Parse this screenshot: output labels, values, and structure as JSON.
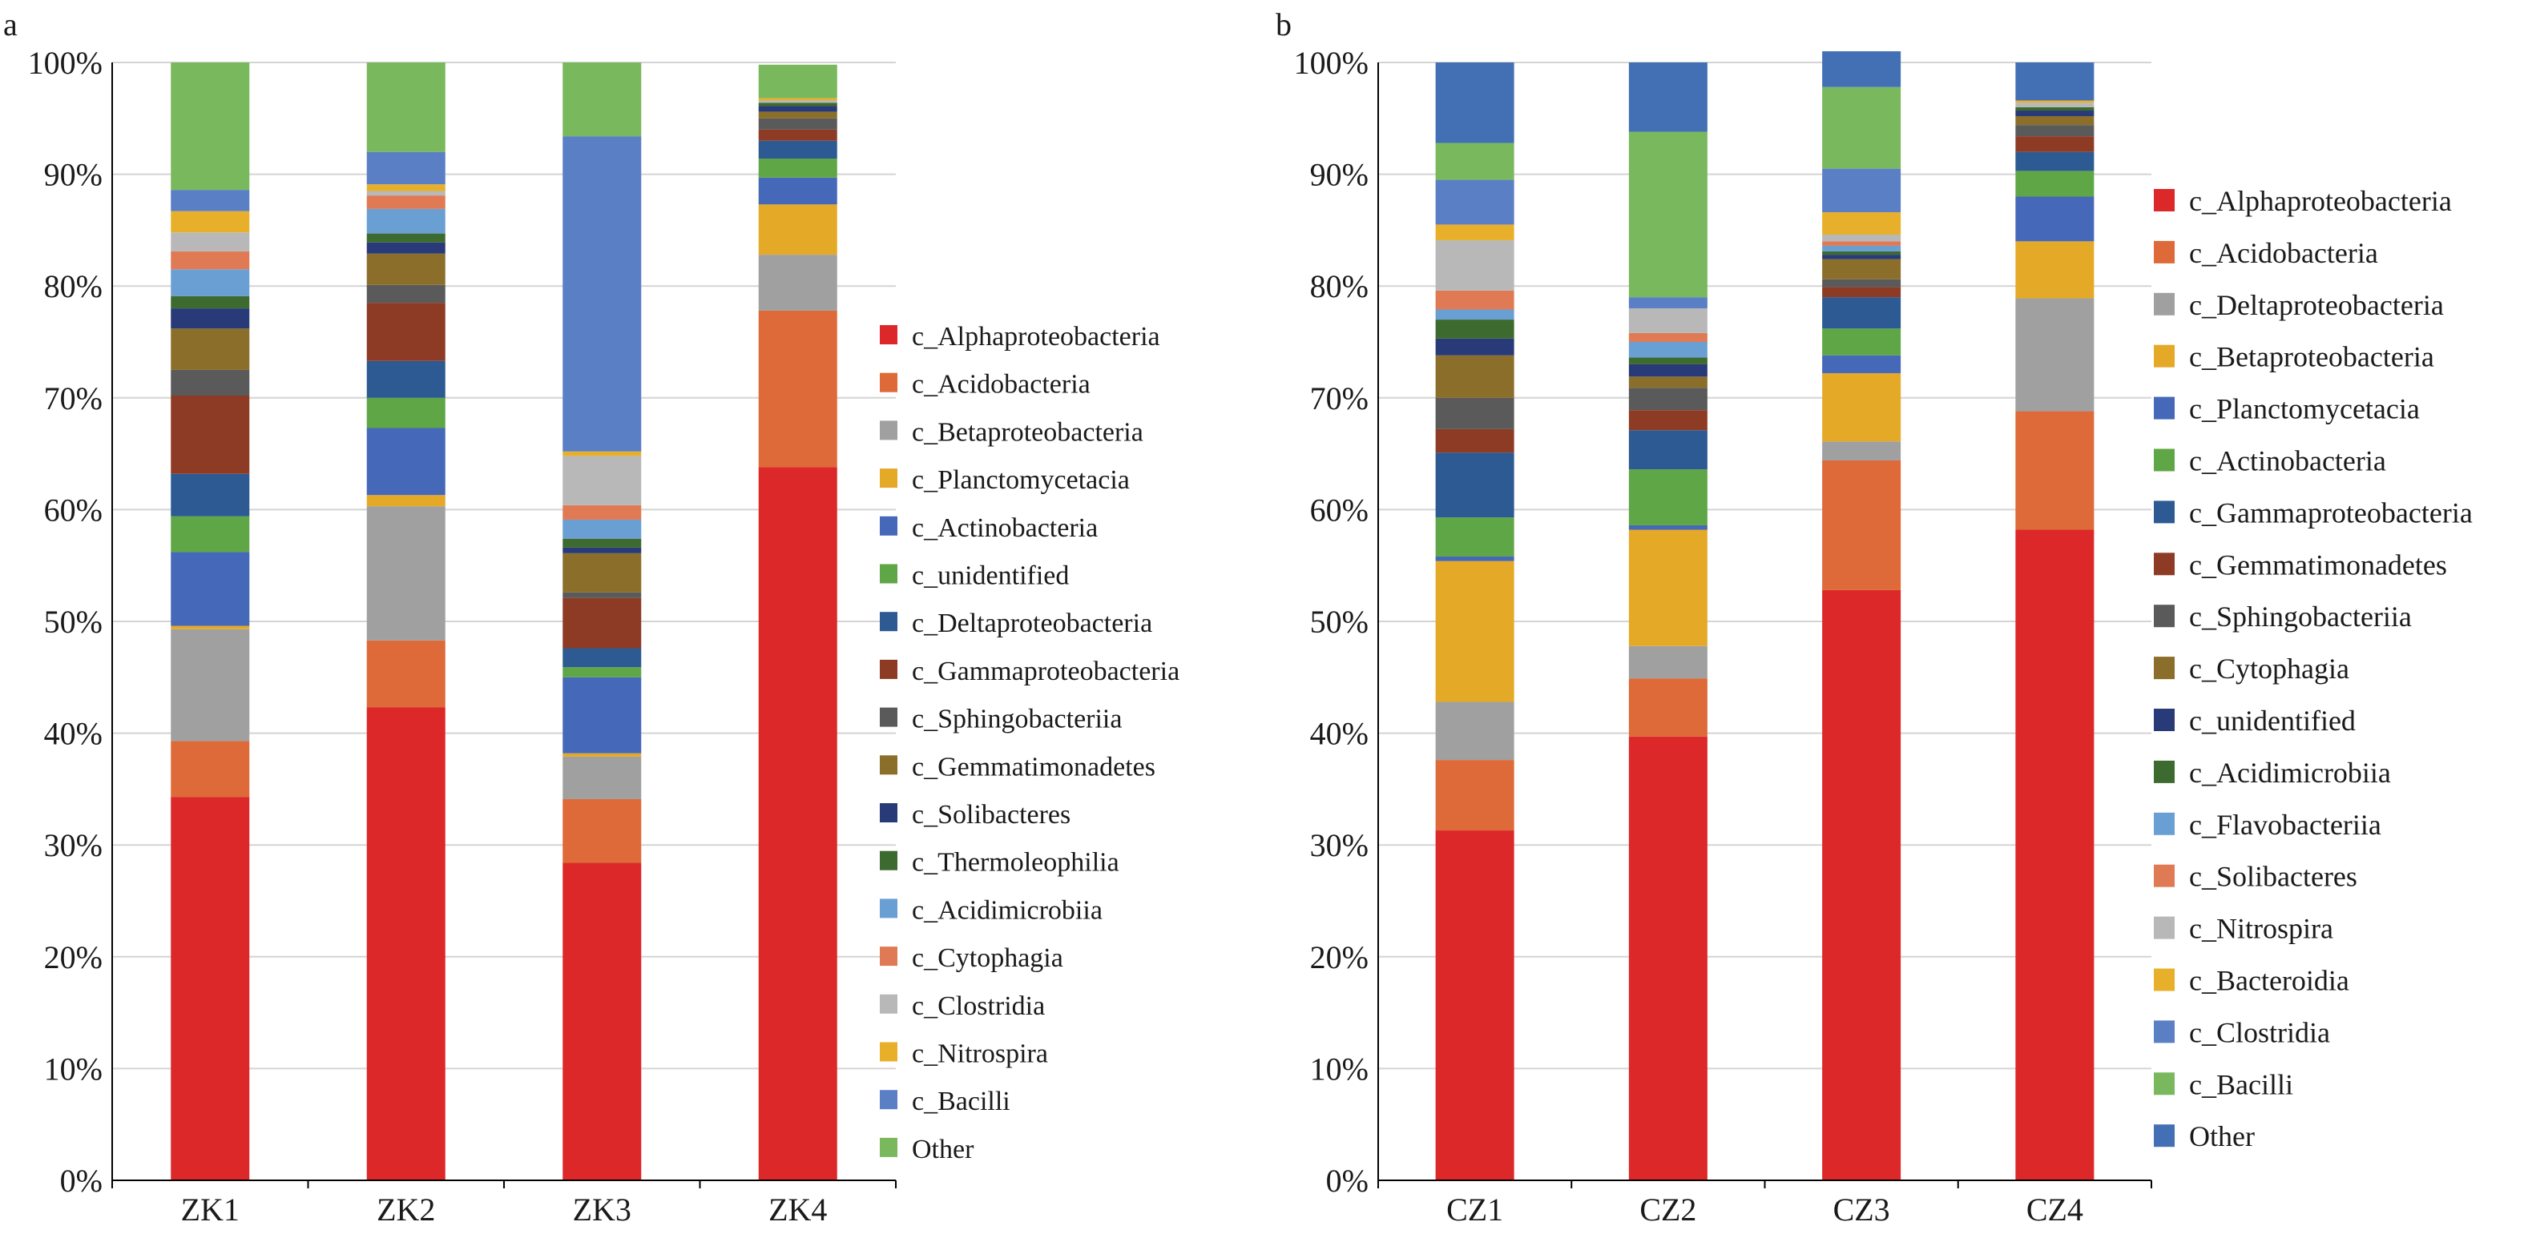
{
  "chart_data": [
    {
      "panel_label": "a",
      "type": "bar",
      "stacked": true,
      "categories": [
        "ZK1",
        "ZK2",
        "ZK3",
        "ZK4"
      ],
      "ylim": [
        0,
        100
      ],
      "yticks": [
        "0%",
        "10%",
        "20%",
        "30%",
        "40%",
        "50%",
        "60%",
        "70%",
        "80%",
        "90%",
        "100%"
      ],
      "grid": true,
      "legend_position": "right",
      "series": [
        {
          "name": "c_Alphaproteobacteria",
          "color": "#dc2828",
          "values": [
            34.3,
            42.3,
            28.4,
            63.8
          ]
        },
        {
          "name": "c_Acidobacteria",
          "color": "#dd6a38",
          "values": [
            5.0,
            6.0,
            5.7,
            14.0
          ]
        },
        {
          "name": "c_Betaproteobacteria",
          "color": "#a0a0a0",
          "values": [
            10.0,
            12.0,
            3.8,
            5.0
          ]
        },
        {
          "name": "c_Planctomycetacia",
          "color": "#e5a928",
          "values": [
            0.3,
            1.0,
            0.3,
            4.5
          ]
        },
        {
          "name": "c_Actinobacteria",
          "color": "#4568b8",
          "values": [
            6.6,
            6.0,
            6.8,
            2.4
          ]
        },
        {
          "name": "c_unidentified",
          "color": "#5fa646",
          "values": [
            3.2,
            2.7,
            0.9,
            1.7
          ]
        },
        {
          "name": "c_Deltaproteobacteria",
          "color": "#2d5a92",
          "values": [
            3.8,
            3.3,
            1.7,
            1.6
          ]
        },
        {
          "name": "c_Gammaproteobacteria",
          "color": "#8e3b26",
          "values": [
            7.0,
            5.2,
            4.5,
            1.0
          ]
        },
        {
          "name": "c_Sphingobacteriia",
          "color": "#5a5a5a",
          "values": [
            2.3,
            1.6,
            0.5,
            1.0
          ]
        },
        {
          "name": "c_Gemmatimonadetes",
          "color": "#8a6e2a",
          "values": [
            3.7,
            2.8,
            3.5,
            0.6
          ]
        },
        {
          "name": "c_Solibacteres",
          "color": "#283a78",
          "values": [
            1.8,
            1.0,
            0.5,
            0.5
          ]
        },
        {
          "name": "c_Thermoleophilia",
          "color": "#3d6a2f",
          "values": [
            1.1,
            0.8,
            0.8,
            0.3
          ]
        },
        {
          "name": "c_Acidimicrobiia",
          "color": "#6a9fd4",
          "values": [
            2.4,
            2.2,
            1.7,
            0.0
          ]
        },
        {
          "name": "c_Cytophagia",
          "color": "#e07a55",
          "values": [
            1.6,
            1.2,
            1.3,
            0.0
          ]
        },
        {
          "name": "c_Clostridia",
          "color": "#b8b8b8",
          "values": [
            1.7,
            0.4,
            4.4,
            0.2
          ]
        },
        {
          "name": "c_Nitrospira",
          "color": "#e8b02a",
          "values": [
            1.9,
            0.6,
            0.4,
            0.2
          ]
        },
        {
          "name": "c_Bacilli",
          "color": "#5b7fc4",
          "values": [
            1.9,
            2.9,
            28.2,
            0.0
          ]
        },
        {
          "name": "Other",
          "color": "#7ab85e",
          "values": [
            11.4,
            8.0,
            6.6,
            3.0
          ]
        }
      ]
    },
    {
      "panel_label": "b",
      "type": "bar",
      "stacked": true,
      "categories": [
        "CZ1",
        "CZ2",
        "CZ3",
        "CZ4"
      ],
      "ylim": [
        0,
        100
      ],
      "yticks": [
        "0%",
        "10%",
        "20%",
        "30%",
        "40%",
        "50%",
        "60%",
        "70%",
        "80%",
        "90%",
        "100%"
      ],
      "grid": true,
      "legend_position": "right",
      "series": [
        {
          "name": "c_Alphaproteobacteria",
          "color": "#dc2828",
          "values": [
            31.3,
            39.7,
            52.8,
            58.2
          ]
        },
        {
          "name": "c_Acidobacteria",
          "color": "#dd6a38",
          "values": [
            6.3,
            5.2,
            11.6,
            10.6
          ]
        },
        {
          "name": "c_Deltaproteobacteria",
          "color": "#a0a0a0",
          "values": [
            5.2,
            2.9,
            1.7,
            10.1
          ]
        },
        {
          "name": "c_Betaproteobacteria",
          "color": "#e5a928",
          "values": [
            12.6,
            10.4,
            6.1,
            5.1
          ]
        },
        {
          "name": "c_Planctomycetacia",
          "color": "#4568b8",
          "values": [
            0.4,
            0.4,
            1.6,
            4.0
          ]
        },
        {
          "name": "c_Actinobacteria",
          "color": "#5fa646",
          "values": [
            3.5,
            5.0,
            2.4,
            2.3
          ]
        },
        {
          "name": "c_Gammaproteobacteria",
          "color": "#2d5a92",
          "values": [
            5.8,
            3.5,
            2.8,
            1.7
          ]
        },
        {
          "name": "c_Gemmatimonadetes",
          "color": "#8e3b26",
          "values": [
            2.1,
            1.8,
            0.9,
            1.4
          ]
        },
        {
          "name": "c_Sphingobacteriia",
          "color": "#5a5a5a",
          "values": [
            2.8,
            2.0,
            0.7,
            1.0
          ]
        },
        {
          "name": "c_Cytophagia",
          "color": "#8a6e2a",
          "values": [
            3.8,
            1.0,
            1.8,
            0.8
          ]
        },
        {
          "name": "c_unidentified",
          "color": "#283a78",
          "values": [
            1.5,
            1.1,
            0.4,
            0.5
          ]
        },
        {
          "name": "c_Acidimicrobiia",
          "color": "#3d6a2f",
          "values": [
            1.7,
            0.6,
            0.3,
            0.3
          ]
        },
        {
          "name": "c_Flavobacteriia",
          "color": "#6a9fd4",
          "values": [
            0.9,
            1.4,
            0.5,
            0.0
          ]
        },
        {
          "name": "c_Solibacteres",
          "color": "#e07a55",
          "values": [
            1.7,
            0.8,
            0.4,
            0.0
          ]
        },
        {
          "name": "c_Nitrospira",
          "color": "#b8b8b8",
          "values": [
            4.5,
            2.2,
            0.6,
            0.4
          ]
        },
        {
          "name": "c_Bacteroidia",
          "color": "#e8b02a",
          "values": [
            1.4,
            0.0,
            2.0,
            0.2
          ]
        },
        {
          "name": "c_Clostridia",
          "color": "#5b7fc4",
          "values": [
            4.0,
            1.0,
            3.9,
            0.0
          ]
        },
        {
          "name": "c_Bacilli",
          "color": "#7ab85e",
          "values": [
            3.3,
            14.8,
            7.3,
            0.0
          ]
        },
        {
          "name": "Other",
          "color": "#4370b5",
          "values": [
            7.2,
            6.2,
            3.2,
            3.4
          ]
        }
      ]
    }
  ]
}
